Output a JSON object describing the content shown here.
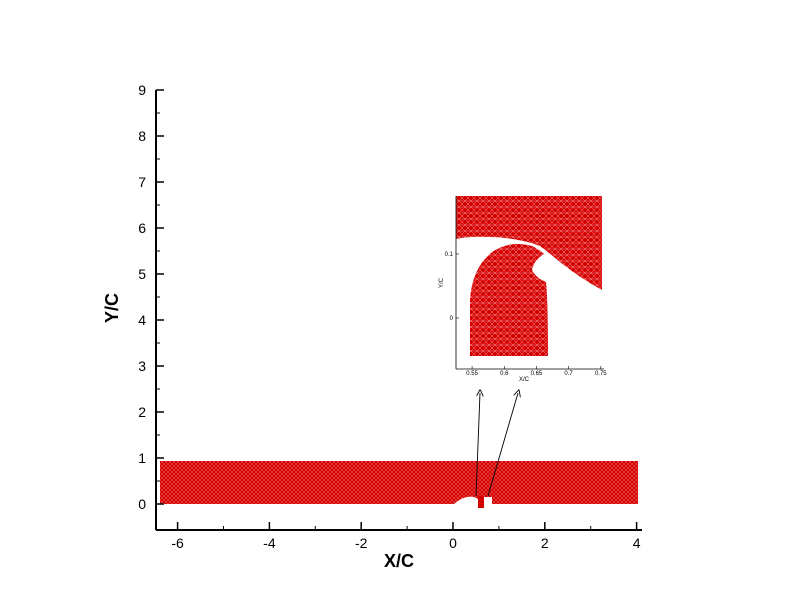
{
  "chart_data": [
    {
      "type": "mesh",
      "xlabel": "X/C",
      "ylabel": "Y/C",
      "xlim": [
        -6.5,
        4.1
      ],
      "ylim": [
        -0.5,
        9.3
      ],
      "x_ticks": [
        -6,
        -4,
        -2,
        0,
        2,
        4
      ],
      "y_ticks": [
        0,
        1,
        2,
        3,
        4,
        5,
        6,
        7,
        8,
        9
      ],
      "domain": {
        "x": [
          -6.4,
          4.0
        ],
        "y": [
          0,
          0.93
        ]
      },
      "mesh_color": "#d40000"
    },
    {
      "type": "mesh",
      "role": "inset",
      "xlabel": "X/C",
      "ylabel": "Y/C",
      "xlim": [
        0.525,
        0.755
      ],
      "ylim": [
        -0.06,
        0.2
      ],
      "x_ticks": [
        0.55,
        0.6,
        0.65,
        0.7,
        0.75
      ],
      "y_ticks": [
        0,
        0.1
      ],
      "mesh_color": "#d40000"
    }
  ]
}
